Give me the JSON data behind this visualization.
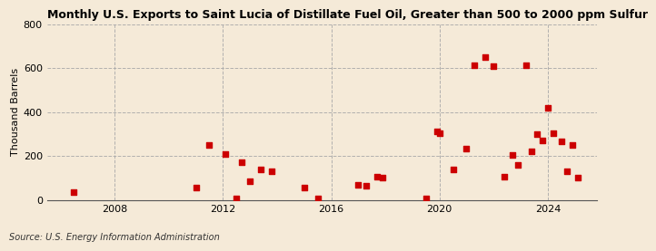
{
  "title": "Monthly U.S. Exports to Saint Lucia of Distillate Fuel Oil, Greater than 500 to 2000 ppm Sulfur",
  "ylabel": "Thousand Barrels",
  "source": "Source: U.S. Energy Information Administration",
  "background_color": "#f5ead8",
  "plot_bg_color": "#f5ead8",
  "marker_color": "#cc0000",
  "ylim": [
    0,
    800
  ],
  "yticks": [
    0,
    200,
    400,
    600,
    800
  ],
  "xlim": [
    2005.5,
    2025.8
  ],
  "xticks": [
    2008,
    2012,
    2016,
    2020,
    2024
  ],
  "data_points": [
    [
      2006.5,
      35
    ],
    [
      2011.0,
      55
    ],
    [
      2011.5,
      250
    ],
    [
      2012.1,
      210
    ],
    [
      2012.5,
      5
    ],
    [
      2012.7,
      170
    ],
    [
      2013.0,
      85
    ],
    [
      2013.4,
      140
    ],
    [
      2013.8,
      130
    ],
    [
      2015.0,
      55
    ],
    [
      2015.5,
      5
    ],
    [
      2017.0,
      70
    ],
    [
      2017.3,
      65
    ],
    [
      2017.7,
      105
    ],
    [
      2017.9,
      100
    ],
    [
      2019.5,
      5
    ],
    [
      2019.9,
      310
    ],
    [
      2020.0,
      305
    ],
    [
      2020.5,
      140
    ],
    [
      2021.0,
      235
    ],
    [
      2021.3,
      615
    ],
    [
      2021.7,
      650
    ],
    [
      2022.0,
      610
    ],
    [
      2022.4,
      105
    ],
    [
      2022.7,
      205
    ],
    [
      2022.9,
      160
    ],
    [
      2023.2,
      615
    ],
    [
      2023.4,
      220
    ],
    [
      2023.6,
      300
    ],
    [
      2023.8,
      270
    ],
    [
      2024.0,
      420
    ],
    [
      2024.2,
      305
    ],
    [
      2024.5,
      265
    ],
    [
      2024.7,
      130
    ],
    [
      2024.9,
      250
    ],
    [
      2025.1,
      100
    ]
  ]
}
